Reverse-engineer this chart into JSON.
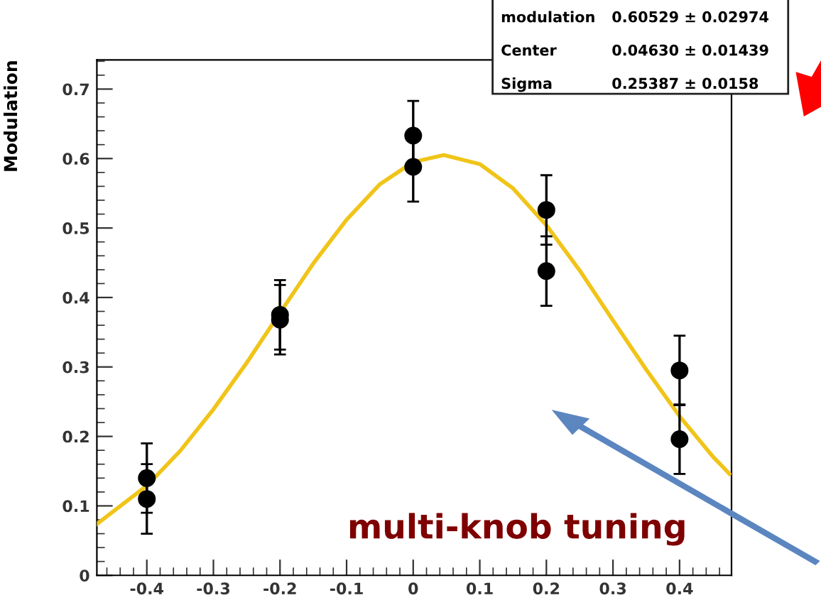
{
  "chart_data": {
    "type": "scatter",
    "ylabel": "Modulation",
    "xlim": [
      -0.475,
      0.478
    ],
    "ylim": [
      0,
      0.742
    ],
    "xticks": [
      -0.4,
      -0.3,
      -0.2,
      -0.1,
      0,
      0.1,
      0.2,
      0.3,
      0.4
    ],
    "yticks": [
      0,
      0.1,
      0.2,
      0.3,
      0.4,
      0.5,
      0.6,
      0.7
    ],
    "grid": false,
    "marker": "circle",
    "series": [
      {
        "color": "#000000",
        "x": [
          -0.4,
          -0.4,
          -0.2,
          -0.2,
          0,
          0,
          0.2,
          0.2,
          0.4,
          0.4
        ],
        "values": [
          0.14,
          0.11,
          0.375,
          0.368,
          0.633,
          0.588,
          0.526,
          0.438,
          0.295,
          0.196
        ],
        "errors": [
          0.05,
          0.05,
          0.05,
          0.05,
          0.05,
          0.05,
          0.05,
          0.05,
          0.05,
          0.05
        ]
      },
      {
        "type": "line",
        "color": "#f0c419",
        "line_style": "solid",
        "marker": "none",
        "x": [
          -0.475,
          -0.4,
          -0.35,
          -0.3,
          -0.25,
          -0.2,
          -0.15,
          -0.1,
          -0.05,
          0,
          0.046,
          0.1,
          0.15,
          0.2,
          0.25,
          0.3,
          0.35,
          0.4,
          0.45,
          0.475
        ],
        "values": [
          0.074,
          0.129,
          0.179,
          0.239,
          0.306,
          0.378,
          0.449,
          0.512,
          0.563,
          0.595,
          0.605,
          0.592,
          0.557,
          0.504,
          0.439,
          0.367,
          0.296,
          0.229,
          0.171,
          0.146
        ]
      }
    ],
    "annotations": [
      "modulation",
      "0.60529 ± 0.02974",
      "Center",
      "0.04630 ± 0.01439",
      "Sigma",
      "0.25387 ± 0.0158",
      "multi-knob tuning"
    ]
  }
}
